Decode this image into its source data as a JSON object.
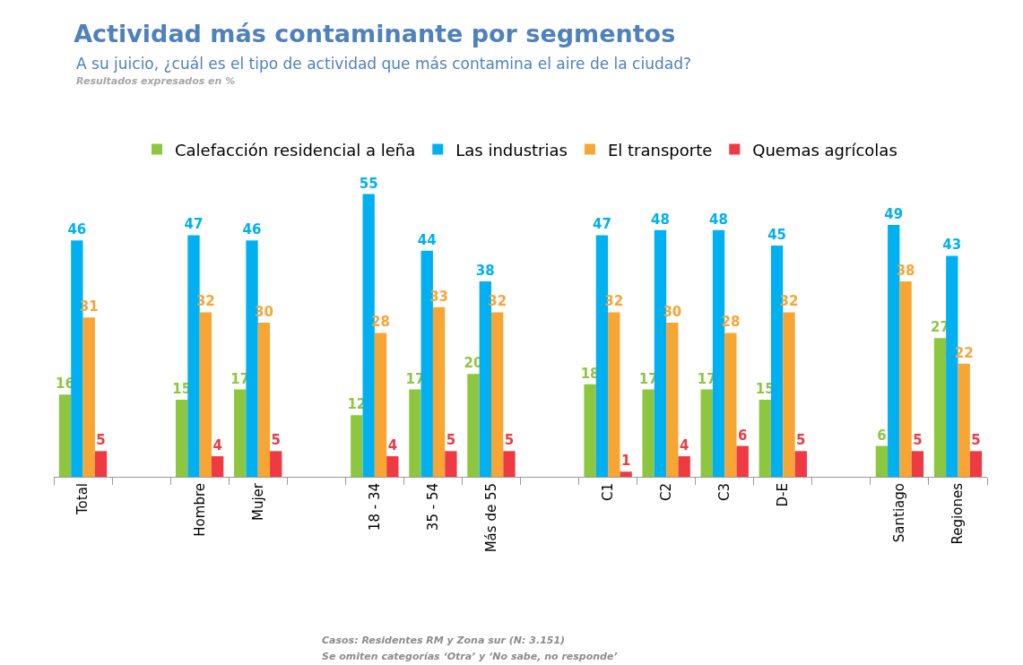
{
  "chart_data": {
    "type": "bar",
    "title": "Actividad más contaminante por segmentos",
    "subtitle": "A su juicio, ¿cuál es el tipo de actividad que más contamina el aire de la ciudad?",
    "categories": [
      "Total",
      null,
      "Hombre",
      "Mujer",
      null,
      "18 - 34",
      "35 - 54",
      "Más de 55",
      null,
      "C1",
      "C2",
      "C3",
      "D-E",
      null,
      "Santiago",
      "Regiones"
    ],
    "series": [
      {
        "name": "Calefacción residencial a leña",
        "color": "#8dc63f",
        "values": [
          16,
          null,
          15,
          17,
          null,
          12,
          17,
          20,
          null,
          18,
          17,
          17,
          15,
          null,
          6,
          27
        ]
      },
      {
        "name": "Las industrias",
        "color": "#00b0f0",
        "values": [
          46,
          null,
          47,
          46,
          null,
          55,
          44,
          38,
          null,
          47,
          48,
          48,
          45,
          null,
          49,
          43
        ]
      },
      {
        "name": "El transporte",
        "color": "#f7a535",
        "values": [
          31,
          null,
          32,
          30,
          null,
          28,
          33,
          32,
          null,
          32,
          30,
          28,
          32,
          null,
          38,
          22
        ]
      },
      {
        "name": "Quemas agrícolas",
        "color": "#ee3a43",
        "values": [
          5,
          null,
          4,
          5,
          null,
          4,
          5,
          5,
          null,
          1,
          4,
          6,
          5,
          null,
          5,
          5
        ]
      }
    ],
    "data_labels": true,
    "legend": "top",
    "grid": false,
    "annotations": [
      "Resultados expresados en %",
      "Casos: Residentes RM y Zona sur (N: 3.151)",
      "Se omiten categorías ‘Otra’ y ‘No sabe, no responde’"
    ]
  }
}
